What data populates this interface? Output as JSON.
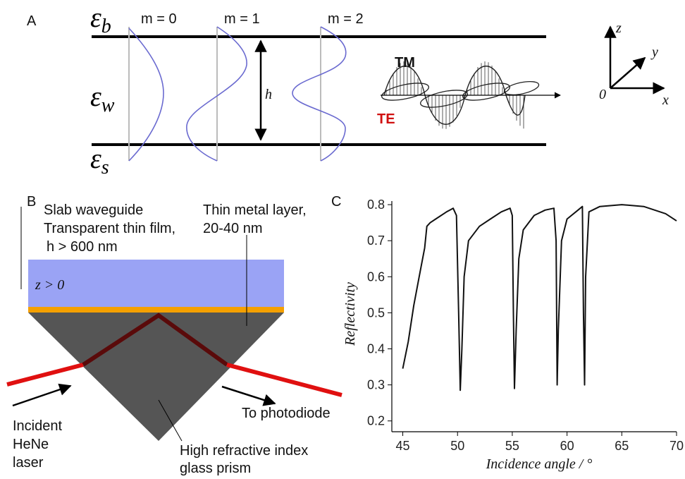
{
  "panel_a": {
    "label": "A",
    "media": [
      {
        "symbol": "ε",
        "sub": "b"
      },
      {
        "symbol": "ε",
        "sub": "w"
      },
      {
        "symbol": "ε",
        "sub": "s"
      }
    ],
    "modes": [
      "m = 0",
      "m = 1",
      "m = 2"
    ],
    "thickness": "h",
    "polarizations": {
      "tm": "TM",
      "te": "TE"
    },
    "axes": {
      "z": "z",
      "y": "y",
      "x": "x",
      "origin": "0"
    }
  },
  "panel_b": {
    "label": "B",
    "waveguide": [
      "Slab waveguide",
      "Transparent thin film,",
      "h > 600 nm"
    ],
    "region": "z > 0",
    "metal": [
      "Thin metal layer,",
      "20-40 nm"
    ],
    "incident": [
      "Incident",
      "HeNe",
      "laser"
    ],
    "output": "To photodiode",
    "prism": [
      "High refractive index",
      "glass prism"
    ]
  },
  "chart_data": {
    "type": "line",
    "panel_label": "C",
    "x_label": "Incidence angle  / °",
    "y_label": "Reflectivity",
    "color": "#111111",
    "x": [
      45,
      45.5,
      46,
      46.5,
      47,
      47.2,
      47.5,
      48,
      49,
      49.6,
      49.9,
      50.1,
      50.25,
      50.4,
      50.6,
      51,
      52,
      53,
      54,
      54.8,
      55,
      55.1,
      55.2,
      55.35,
      55.6,
      56,
      57,
      58,
      58.8,
      59,
      59.1,
      59.2,
      59.5,
      60,
      61,
      61.4,
      61.5,
      61.6,
      61.7,
      62,
      63,
      65,
      67,
      69,
      70
    ],
    "values": [
      0.345,
      0.42,
      0.52,
      0.6,
      0.68,
      0.74,
      0.75,
      0.76,
      0.78,
      0.79,
      0.77,
      0.5,
      0.285,
      0.4,
      0.6,
      0.7,
      0.74,
      0.76,
      0.78,
      0.79,
      0.77,
      0.5,
      0.29,
      0.45,
      0.65,
      0.73,
      0.77,
      0.785,
      0.79,
      0.7,
      0.3,
      0.45,
      0.7,
      0.76,
      0.785,
      0.795,
      0.5,
      0.3,
      0.6,
      0.78,
      0.795,
      0.8,
      0.795,
      0.775,
      0.755
    ],
    "xlim": [
      44,
      70
    ],
    "ylim": [
      0.17,
      0.81
    ],
    "xticks": [
      45,
      50,
      55,
      60,
      65,
      70
    ],
    "yticks": [
      0.2,
      0.3,
      0.4,
      0.5,
      0.6,
      0.7,
      0.8
    ]
  }
}
